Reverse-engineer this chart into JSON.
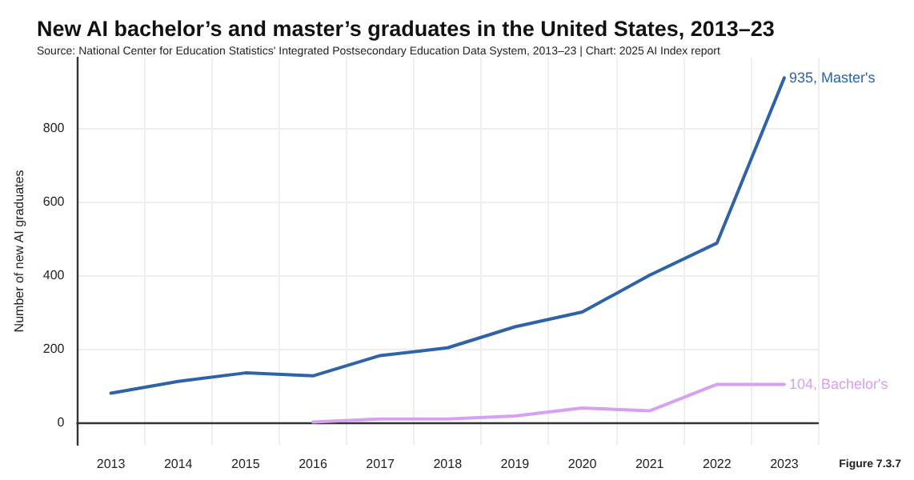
{
  "chart_data": {
    "type": "line",
    "title": "New AI bachelor’s and master’s graduates in the United States, 2013–23",
    "subtitle": "Source: National Center for Education Statistics' Integrated Postsecondary Education Data System, 2013–23 | Chart: 2025 AI Index report",
    "ylabel": "Number of new AI graduates",
    "annotations": [
      "Figure 7.3.7"
    ],
    "categories": [
      "2013",
      "2014",
      "2015",
      "2016",
      "2017",
      "2018",
      "2019",
      "2020",
      "2021",
      "2022",
      "2023"
    ],
    "series": [
      {
        "name": "Master's",
        "color": "#2e63a8",
        "values": [
          80,
          112,
          135,
          127,
          182,
          203,
          260,
          300,
          400,
          487,
          935
        ],
        "value_labels": [
          null,
          null,
          null,
          null,
          null,
          null,
          null,
          null,
          null,
          null,
          "935,"
        ]
      },
      {
        "name": "Bachelor's",
        "color": "#d8a0f0",
        "values": [
          null,
          null,
          null,
          2,
          10,
          10,
          18,
          40,
          32,
          104,
          104
        ],
        "value_labels": [
          null,
          null,
          null,
          null,
          null,
          null,
          null,
          null,
          null,
          null,
          "104,"
        ]
      }
    ],
    "ylim": [
      -60,
      990
    ],
    "yticks": [
      0,
      200,
      400,
      600,
      800
    ],
    "grid": true,
    "legend": false,
    "marker": "none",
    "line_style": "solid"
  }
}
